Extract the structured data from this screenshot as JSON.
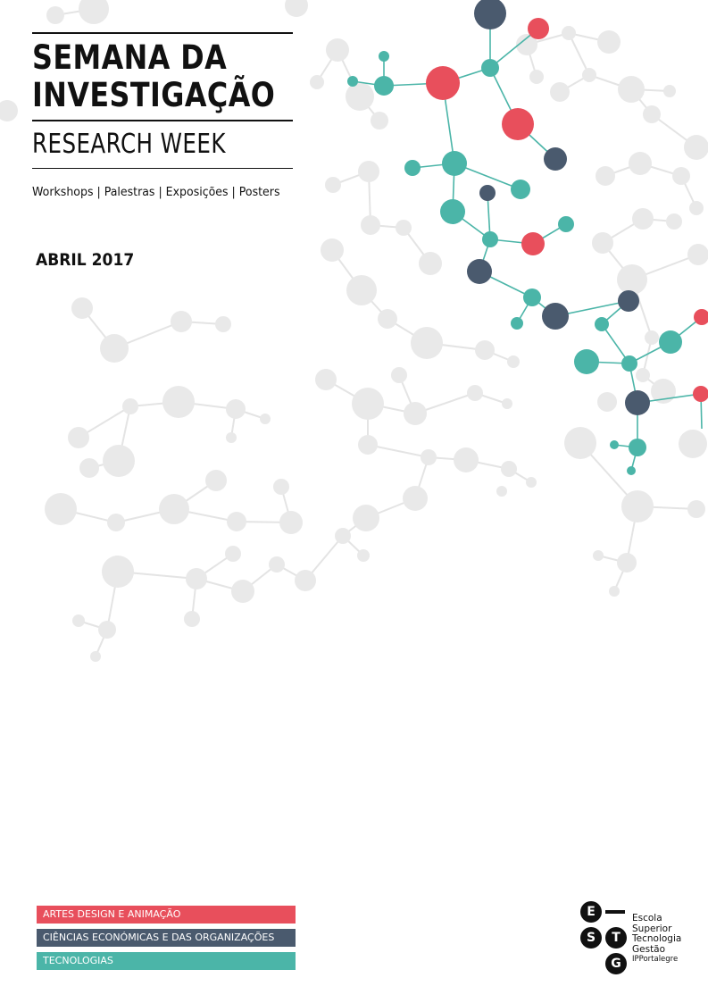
{
  "title": {
    "line1": "SEMANA DA",
    "line2": "INVESTIGAÇÃO",
    "subtitle": "RESEARCH WEEK"
  },
  "tagline": "Workshops | Palestras | Exposições | Posters",
  "date": "ABRIL 2017",
  "areas": [
    {
      "label": "ARTES DESIGN E ANIMAÇÃO",
      "color": "#e84f5c"
    },
    {
      "label": "CIÊNCIAS ECONÓMICAS E DAS ORGANIZAÇÕES",
      "color": "#4a5a6e"
    },
    {
      "label": "TECNOLOGIAS",
      "color": "#4bb5a8"
    }
  ],
  "logo": {
    "letters": [
      "E",
      "S",
      "T",
      "G"
    ],
    "lines": [
      "Escola",
      "Superior",
      "Tecnologia",
      "Gestão"
    ],
    "institution": "IPPortalegre"
  },
  "colors": {
    "teal": "#4bb5a8",
    "red": "#e84f5c",
    "navy": "#4a5a6e",
    "gray_node": "#e9e9e9",
    "gray_line": "#e4e4e4"
  }
}
